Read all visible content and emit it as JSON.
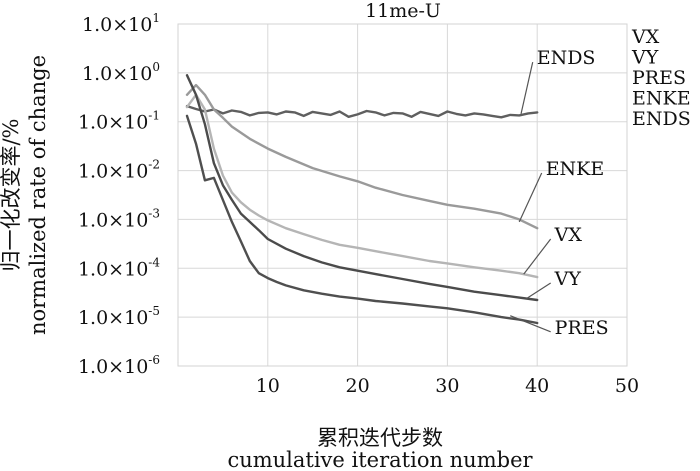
{
  "chart_data": {
    "type": "line",
    "title": "11me-U",
    "xlabel_cn": "累积迭代步数",
    "xlabel_en": "cumulative iteration number",
    "ylabel_cn": "归一化改变率/%",
    "ylabel_en": "normalized rate of change",
    "xlim": [
      0,
      50
    ],
    "ylim_exp": [
      -6,
      1
    ],
    "y_scale": "log",
    "grid": true,
    "x_ticks": [
      {
        "value": 10,
        "label": "10"
      },
      {
        "value": 20,
        "label": "20"
      },
      {
        "value": 30,
        "label": "30"
      },
      {
        "value": 40,
        "label": "40"
      },
      {
        "value": 50,
        "label": "50"
      }
    ],
    "y_ticks": [
      {
        "exp": 1,
        "mant": "1.0×10",
        "sup": "1"
      },
      {
        "exp": 0,
        "mant": "1.0×10",
        "sup": "0"
      },
      {
        "exp": -1,
        "mant": "1.0×10",
        "sup": "-1"
      },
      {
        "exp": -2,
        "mant": "1.0×10",
        "sup": "-2"
      },
      {
        "exp": -3,
        "mant": "1.0×10",
        "sup": "-3"
      },
      {
        "exp": -4,
        "mant": "1.0×10",
        "sup": "-4"
      },
      {
        "exp": -5,
        "mant": "1.0×10",
        "sup": "-5"
      },
      {
        "exp": -6,
        "mant": "1.0×10",
        "sup": "-6"
      }
    ],
    "legend": [
      "VX",
      "VY",
      "PRES",
      "ENKE",
      "ENDS"
    ],
    "legend_position": "right-outside-top",
    "series": [
      {
        "name": "ENDS",
        "color": "#5f5f5f",
        "x": [
          1,
          2,
          3,
          4,
          5,
          6,
          7,
          8,
          9,
          10,
          11,
          12,
          13,
          14,
          15,
          16,
          17,
          18,
          19,
          20,
          21,
          22,
          23,
          24,
          25,
          26,
          27,
          28,
          29,
          30,
          31,
          32,
          33,
          34,
          35,
          36,
          37,
          38,
          39,
          40
        ],
        "log_y": [
          -0.68,
          -0.74,
          -0.79,
          -0.75,
          -0.83,
          -0.77,
          -0.8,
          -0.87,
          -0.82,
          -0.81,
          -0.85,
          -0.79,
          -0.81,
          -0.88,
          -0.8,
          -0.83,
          -0.86,
          -0.79,
          -0.9,
          -0.85,
          -0.78,
          -0.81,
          -0.87,
          -0.82,
          -0.83,
          -0.9,
          -0.8,
          -0.84,
          -0.88,
          -0.79,
          -0.84,
          -0.87,
          -0.83,
          -0.85,
          -0.88,
          -0.91,
          -0.86,
          -0.87,
          -0.83,
          -0.81
        ]
      },
      {
        "name": "ENKE",
        "color": "#9a9a9a",
        "x": [
          1,
          2,
          3,
          4,
          5,
          6,
          8,
          10,
          12,
          15,
          18,
          20,
          22,
          25,
          28,
          30,
          33,
          36,
          38,
          40
        ],
        "log_y": [
          -0.45,
          -0.25,
          -0.45,
          -0.75,
          -0.92,
          -1.1,
          -1.35,
          -1.55,
          -1.72,
          -1.95,
          -2.12,
          -2.22,
          -2.35,
          -2.5,
          -2.62,
          -2.7,
          -2.78,
          -2.88,
          -3.0,
          -3.18
        ]
      },
      {
        "name": "VX",
        "color": "#b5b5b5",
        "x": [
          1,
          2,
          3,
          4,
          5,
          6,
          7,
          8,
          9,
          10,
          12,
          14,
          16,
          18,
          20,
          22,
          25,
          28,
          30,
          33,
          36,
          38,
          40
        ],
        "log_y": [
          -0.7,
          -0.45,
          -0.75,
          -1.55,
          -2.1,
          -2.45,
          -2.65,
          -2.8,
          -2.92,
          -3.02,
          -3.18,
          -3.3,
          -3.42,
          -3.52,
          -3.58,
          -3.65,
          -3.75,
          -3.85,
          -3.9,
          -3.98,
          -4.05,
          -4.1,
          -4.18
        ]
      },
      {
        "name": "VY",
        "color": "#4b4b4b",
        "x": [
          1,
          2,
          3,
          4,
          5,
          6,
          7,
          8,
          9,
          10,
          12,
          14,
          16,
          18,
          20,
          22,
          25,
          28,
          30,
          33,
          36,
          38,
          40
        ],
        "log_y": [
          -0.05,
          -0.45,
          -1.05,
          -1.85,
          -2.3,
          -2.6,
          -2.88,
          -3.05,
          -3.22,
          -3.4,
          -3.6,
          -3.75,
          -3.88,
          -3.98,
          -4.05,
          -4.12,
          -4.22,
          -4.32,
          -4.38,
          -4.48,
          -4.55,
          -4.6,
          -4.65
        ]
      },
      {
        "name": "PRES",
        "color": "#4f4f4f",
        "x": [
          1,
          2,
          3,
          4,
          5,
          6,
          7,
          8,
          9,
          10,
          11,
          12,
          14,
          16,
          18,
          20,
          22,
          25,
          28,
          30,
          33,
          36,
          38,
          40
        ],
        "log_y": [
          -0.88,
          -1.45,
          -2.2,
          -2.15,
          -2.6,
          -3.05,
          -3.45,
          -3.85,
          -4.1,
          -4.2,
          -4.28,
          -4.35,
          -4.45,
          -4.52,
          -4.58,
          -4.62,
          -4.67,
          -4.72,
          -4.78,
          -4.82,
          -4.9,
          -5.0,
          -5.05,
          -5.12
        ]
      }
    ],
    "annotations": [
      {
        "text": "ENDS",
        "series": "ENDS",
        "at_x": 38.2,
        "at_log_y": -0.84,
        "label_x": 39.5,
        "label_log_y": 0.22
      },
      {
        "text": "ENKE",
        "series": "ENKE",
        "at_x": 38.0,
        "at_log_y": -3.05,
        "label_x": 40.5,
        "label_log_y": -2.05
      },
      {
        "text": "VX",
        "series": "VX",
        "at_x": 38.5,
        "at_log_y": -4.12,
        "label_x": 41.5,
        "label_log_y": -3.4
      },
      {
        "text": "VY",
        "series": "VY",
        "at_x": 38.8,
        "at_log_y": -4.62,
        "label_x": 41.5,
        "label_log_y": -4.3
      },
      {
        "text": "PRES",
        "series": "PRES",
        "at_x": 37.0,
        "at_log_y": -4.97,
        "label_x": 41.5,
        "label_log_y": -5.3
      }
    ]
  }
}
